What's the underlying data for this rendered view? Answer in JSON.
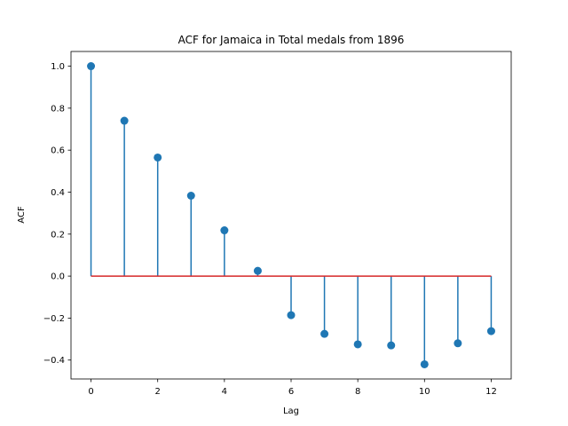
{
  "chart_data": {
    "type": "stem",
    "title": "ACF for Jamaica in Total medals from 1896",
    "xlabel": "Lag",
    "ylabel": "ACF",
    "x": [
      0,
      1,
      2,
      3,
      4,
      5,
      6,
      7,
      8,
      9,
      10,
      11,
      12
    ],
    "values": [
      1.0,
      0.74,
      0.565,
      0.383,
      0.218,
      0.025,
      -0.186,
      -0.275,
      -0.325,
      -0.33,
      -0.42,
      -0.32,
      -0.262
    ],
    "xlim": [
      -0.6,
      12.6
    ],
    "ylim": [
      -0.49,
      1.07
    ],
    "xticks": [
      "0",
      "2",
      "4",
      "6",
      "8",
      "10",
      "12"
    ],
    "yticks": [
      "−0.4",
      "−0.2",
      "0.0",
      "0.2",
      "0.4",
      "0.6",
      "0.8",
      "1.0"
    ],
    "grid": false,
    "colors": {
      "stem": "#1f77b4",
      "marker": "#1f77b4",
      "baseline": "#d62728"
    }
  }
}
